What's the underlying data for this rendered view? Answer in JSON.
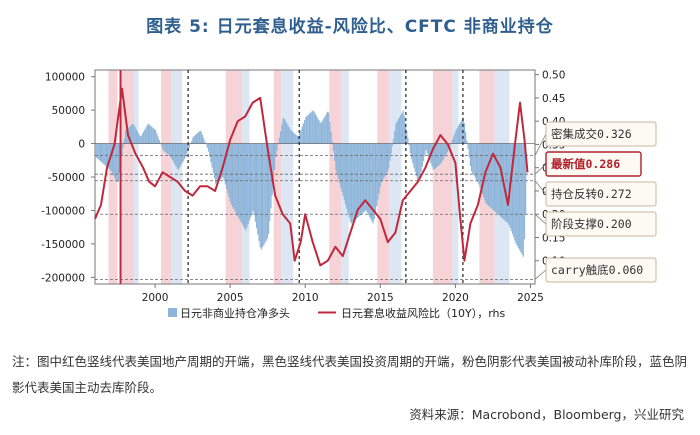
{
  "title": "图表 5:  日元套息收益-风险比、CFTC 非商业持仓",
  "note": "注：图中红色竖线代表美国地产周期的开端，黑色竖线代表美国投资周期的开端，粉色阴影代表美国被动补库阶段，蓝色阴影代表美国主动去库阶段。",
  "source": "资料来源：Macrobond，Bloomberg，兴业研究",
  "chart_data": {
    "type": "bar+line",
    "x_ticks": [
      2000,
      2005,
      2010,
      2015,
      2020,
      2025
    ],
    "xlim": [
      1996.0,
      2025.3
    ],
    "y_left": {
      "ticks": [
        100000,
        50000,
        0,
        -50000,
        -100000,
        -150000,
        -200000
      ],
      "labels": [
        "100000",
        "50000",
        "0",
        "-50000",
        "-100000",
        "-150000",
        "-200000"
      ],
      "lim": [
        -210000,
        110000
      ]
    },
    "y_right": {
      "ticks": [
        0.5,
        0.45,
        0.4,
        0.35,
        0.3,
        0.25,
        0.2,
        0.15,
        0.1
      ],
      "labels": [
        "0.50",
        "0.45",
        "0.40",
        "0.35",
        "0.30",
        "0.25",
        "0.20",
        "0.15",
        "0.10"
      ],
      "lim": [
        0.05,
        0.51
      ]
    },
    "legend": [
      "日元非商业持仓净多头",
      "日元套息收益风险比（10Y），rhs"
    ],
    "colors": {
      "bars": "#8fb6da",
      "line": "#c0283d",
      "pink_shade": "#f6d3d6",
      "blue_shade": "#dce7f3",
      "red_vline": "#c0283d",
      "black_vline": "#222222",
      "callout_border": "#c9b79e",
      "callout_fill": "#fdf9f3",
      "hl_border": "#b3202c"
    },
    "red_vlines": [
      1997.7
    ],
    "black_vlines": [
      2002.2,
      2009.6,
      2016.7,
      2020.5
    ],
    "pink_shades": [
      [
        1996.9,
        1997.5
      ],
      [
        1997.7,
        1998.6
      ],
      [
        2000.4,
        2001.1
      ],
      [
        2004.7,
        2005.8
      ],
      [
        2007.9,
        2008.4
      ],
      [
        2011.6,
        2012.4
      ],
      [
        2014.8,
        2015.6
      ],
      [
        2018.5,
        2019.8
      ],
      [
        2021.6,
        2022.6
      ]
    ],
    "blue_shades": [
      [
        1998.6,
        1998.9
      ],
      [
        2001.1,
        2001.8
      ],
      [
        2005.8,
        2006.3
      ],
      [
        2008.4,
        2009.2
      ],
      [
        2012.4,
        2012.9
      ],
      [
        2015.6,
        2016.4
      ],
      [
        2019.8,
        2020.2
      ],
      [
        2022.6,
        2023.6
      ]
    ],
    "thresholds": [
      {
        "label": "密集成交",
        "value": 0.326
      },
      {
        "label": "最新值",
        "value": 0.286,
        "highlight": true
      },
      {
        "label": "持仓反转",
        "value": 0.272
      },
      {
        "label": "阶段支撑",
        "value": 0.2
      },
      {
        "label": "carry触底",
        "value": 0.06
      }
    ],
    "threshold_strings": [
      "0.326",
      "0.286",
      "0.272",
      "0.200",
      "0.060"
    ],
    "positions_series": {
      "x": [
        1996.0,
        1996.5,
        1997.0,
        1997.5,
        1998.0,
        1998.5,
        1999.0,
        1999.5,
        2000.0,
        2000.5,
        2001.0,
        2001.5,
        2002.0,
        2002.5,
        2003.0,
        2003.5,
        2004.0,
        2004.5,
        2005.0,
        2005.5,
        2006.0,
        2006.5,
        2007.0,
        2007.5,
        2008.0,
        2008.5,
        2009.0,
        2009.5,
        2010.0,
        2010.5,
        2011.0,
        2011.5,
        2012.0,
        2012.5,
        2013.0,
        2013.5,
        2014.0,
        2014.5,
        2015.0,
        2015.5,
        2016.0,
        2016.5,
        2017.0,
        2017.5,
        2018.0,
        2018.5,
        2019.0,
        2019.5,
        2020.0,
        2020.5,
        2021.0,
        2021.5,
        2022.0,
        2022.5,
        2023.0,
        2023.5,
        2024.0,
        2024.5,
        2024.7
      ],
      "values": [
        -20000,
        -30000,
        -40000,
        -60000,
        20000,
        30000,
        10000,
        30000,
        20000,
        -10000,
        -20000,
        -40000,
        -20000,
        10000,
        20000,
        -10000,
        -60000,
        -50000,
        -90000,
        -110000,
        -130000,
        -100000,
        -160000,
        -140000,
        -20000,
        40000,
        20000,
        10000,
        40000,
        50000,
        30000,
        50000,
        -40000,
        -80000,
        -120000,
        -110000,
        -100000,
        -120000,
        -60000,
        -40000,
        30000,
        50000,
        -20000,
        -60000,
        -10000,
        -40000,
        -30000,
        -10000,
        20000,
        40000,
        -40000,
        -60000,
        -90000,
        -100000,
        -110000,
        -120000,
        -150000,
        -170000,
        -80000
      ]
    },
    "ratio_series": {
      "x": [
        1996.0,
        1996.4,
        1996.8,
        1997.3,
        1997.8,
        1998.2,
        1998.7,
        1999.2,
        1999.6,
        2000.0,
        2000.5,
        2001.0,
        2001.5,
        2002.0,
        2002.5,
        2003.0,
        2003.5,
        2004.0,
        2004.5,
        2005.0,
        2005.5,
        2006.0,
        2006.5,
        2007.0,
        2007.5,
        2008.0,
        2008.5,
        2009.0,
        2009.3,
        2009.7,
        2010.0,
        2010.5,
        2011.0,
        2011.5,
        2012.0,
        2012.5,
        2013.0,
        2013.5,
        2014.0,
        2014.5,
        2015.0,
        2015.5,
        2016.0,
        2016.5,
        2017.0,
        2017.5,
        2018.0,
        2018.5,
        2019.0,
        2019.5,
        2020.0,
        2020.3,
        2020.6,
        2021.0,
        2021.5,
        2022.0,
        2022.5,
        2023.0,
        2023.5,
        2024.0,
        2024.3,
        2024.6,
        2024.8
      ],
      "values": [
        0.19,
        0.22,
        0.3,
        0.35,
        0.47,
        0.37,
        0.33,
        0.3,
        0.27,
        0.26,
        0.29,
        0.28,
        0.27,
        0.25,
        0.24,
        0.26,
        0.26,
        0.25,
        0.3,
        0.36,
        0.4,
        0.41,
        0.44,
        0.45,
        0.34,
        0.24,
        0.2,
        0.18,
        0.1,
        0.14,
        0.2,
        0.14,
        0.09,
        0.1,
        0.13,
        0.11,
        0.16,
        0.21,
        0.23,
        0.21,
        0.19,
        0.14,
        0.16,
        0.23,
        0.25,
        0.27,
        0.3,
        0.34,
        0.37,
        0.35,
        0.31,
        0.2,
        0.1,
        0.18,
        0.22,
        0.29,
        0.33,
        0.3,
        0.22,
        0.36,
        0.44,
        0.36,
        0.29
      ]
    }
  }
}
